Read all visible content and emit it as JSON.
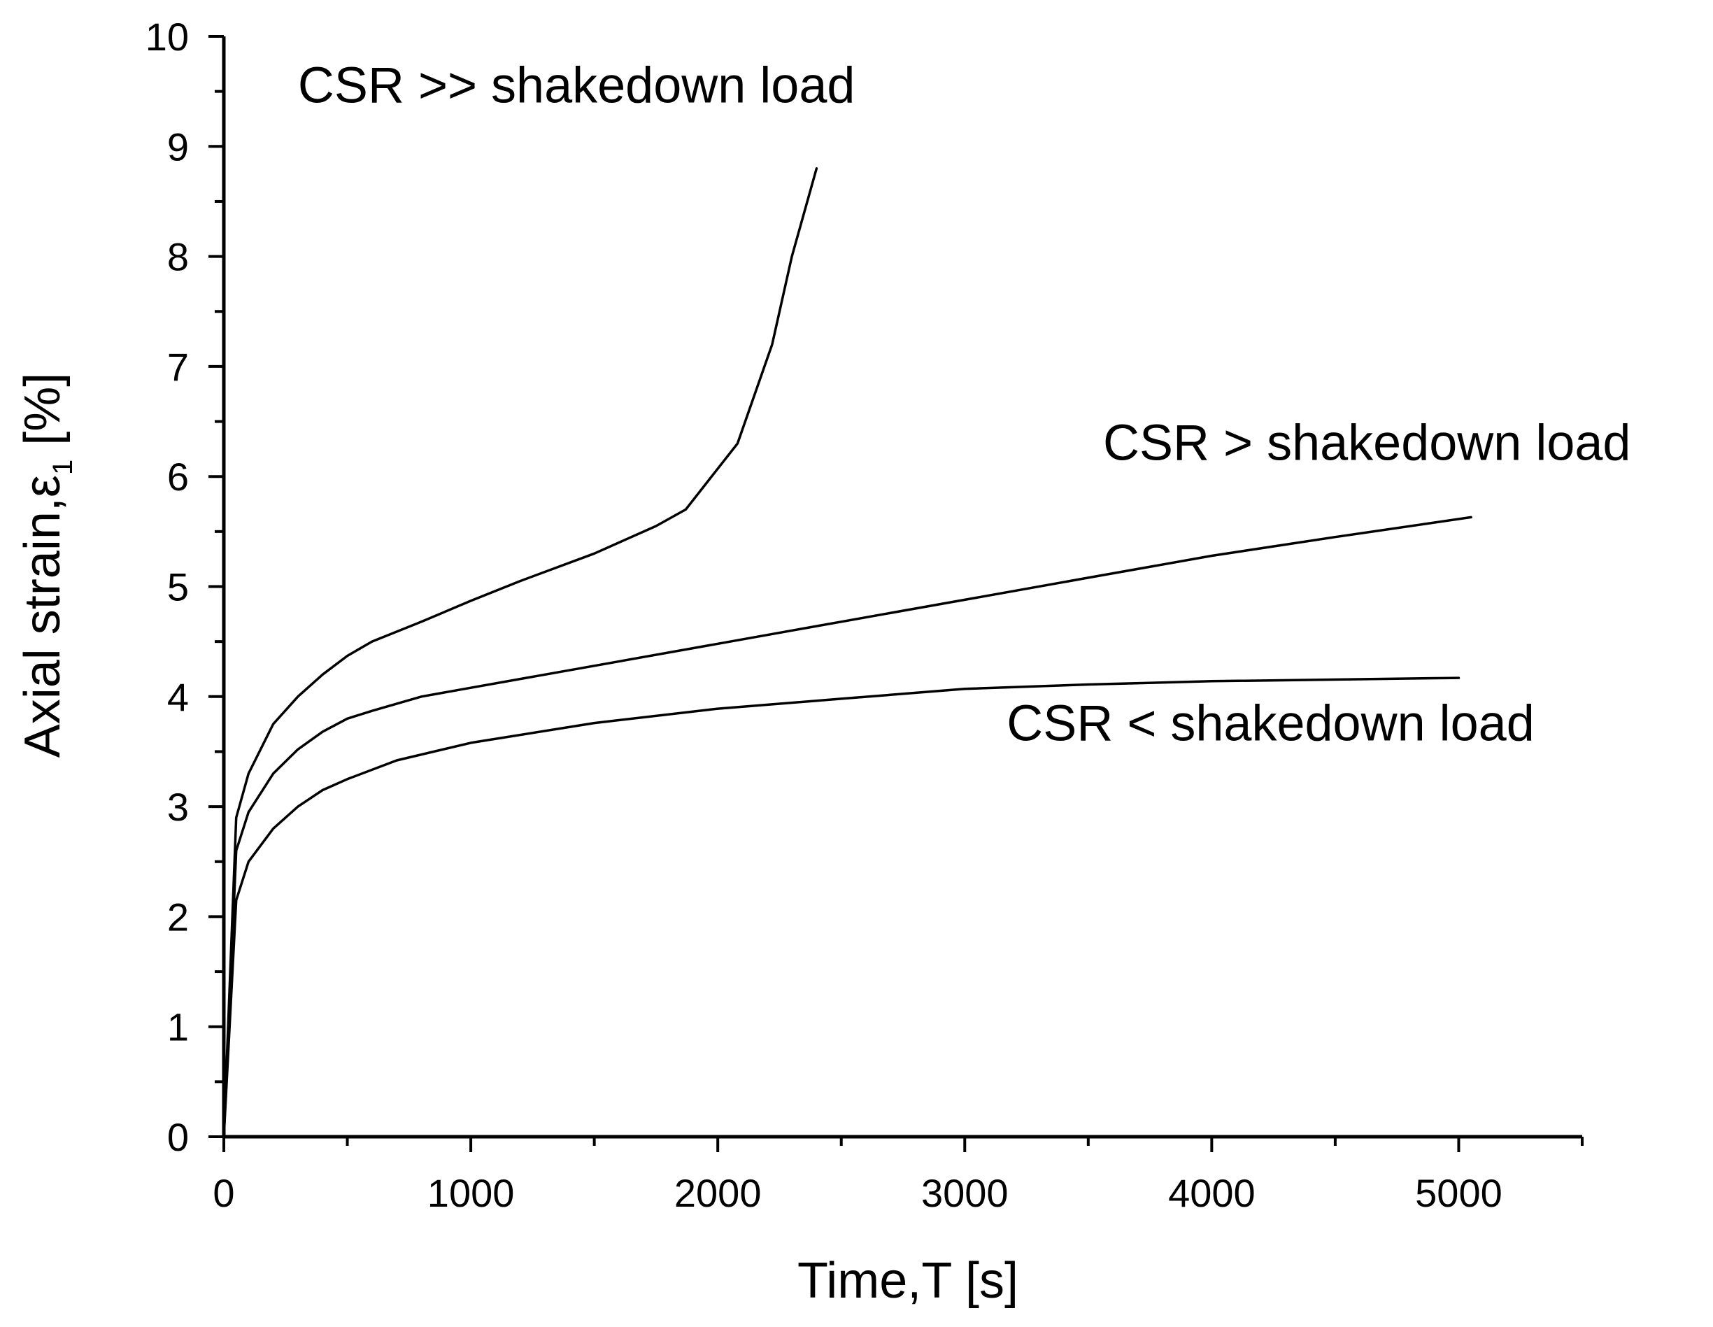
{
  "chart_data": {
    "type": "line",
    "title": "",
    "xlabel": "Time,T [s]",
    "ylabel": {
      "main": "Axial strain,ε",
      "subscript": "1",
      "unit": " [%]"
    },
    "xlim": [
      0,
      5500
    ],
    "ylim": [
      0,
      10
    ],
    "x_major_ticks": [
      0,
      1000,
      2000,
      3000,
      4000,
      5000
    ],
    "x_minor_ticks": [
      500,
      1500,
      2500,
      3500,
      4500,
      5500
    ],
    "y_major_ticks": [
      0,
      1,
      2,
      3,
      4,
      5,
      6,
      7,
      8,
      9,
      10
    ],
    "y_minor_ticks": [
      0.5,
      1.5,
      2.5,
      3.5,
      4.5,
      5.5,
      6.5,
      7.5,
      8.5,
      9.5
    ],
    "grid": false,
    "line_color": "#000000",
    "series": [
      {
        "name": "CSR >> shakedown load",
        "x": [
          0,
          50,
          100,
          200,
          300,
          400,
          500,
          600,
          800,
          1000,
          1200,
          1500,
          1750,
          1870,
          2080,
          2220,
          2300,
          2400
        ],
        "y": [
          0,
          2.9,
          3.3,
          3.75,
          4.0,
          4.2,
          4.37,
          4.5,
          4.68,
          4.87,
          5.05,
          5.3,
          5.55,
          5.7,
          6.3,
          7.2,
          8.0,
          8.8
        ]
      },
      {
        "name": "CSR > shakedown load",
        "x": [
          0,
          50,
          100,
          200,
          300,
          400,
          500,
          600,
          800,
          1000,
          1500,
          2000,
          2500,
          3000,
          3500,
          4000,
          4500,
          5050
        ],
        "y": [
          0,
          2.6,
          2.95,
          3.3,
          3.52,
          3.68,
          3.8,
          3.87,
          4.0,
          4.08,
          4.28,
          4.48,
          4.68,
          4.88,
          5.08,
          5.28,
          5.45,
          5.63
        ]
      },
      {
        "name": "CSR < shakedown load",
        "x": [
          0,
          50,
          100,
          200,
          300,
          400,
          500,
          700,
          1000,
          1500,
          2000,
          2500,
          3000,
          3500,
          4000,
          5000
        ],
        "y": [
          0,
          2.15,
          2.5,
          2.8,
          3.0,
          3.15,
          3.25,
          3.42,
          3.58,
          3.76,
          3.89,
          3.98,
          4.07,
          4.11,
          4.14,
          4.17
        ]
      }
    ],
    "annotations": [
      {
        "text": "CSR >> shakedown load",
        "x": 300,
        "y": 9.4
      },
      {
        "text": "CSR > shakedown load",
        "x": 3560,
        "y": 6.15
      },
      {
        "text": "CSR < shakedown load",
        "x": 3170,
        "y": 3.6
      }
    ]
  }
}
